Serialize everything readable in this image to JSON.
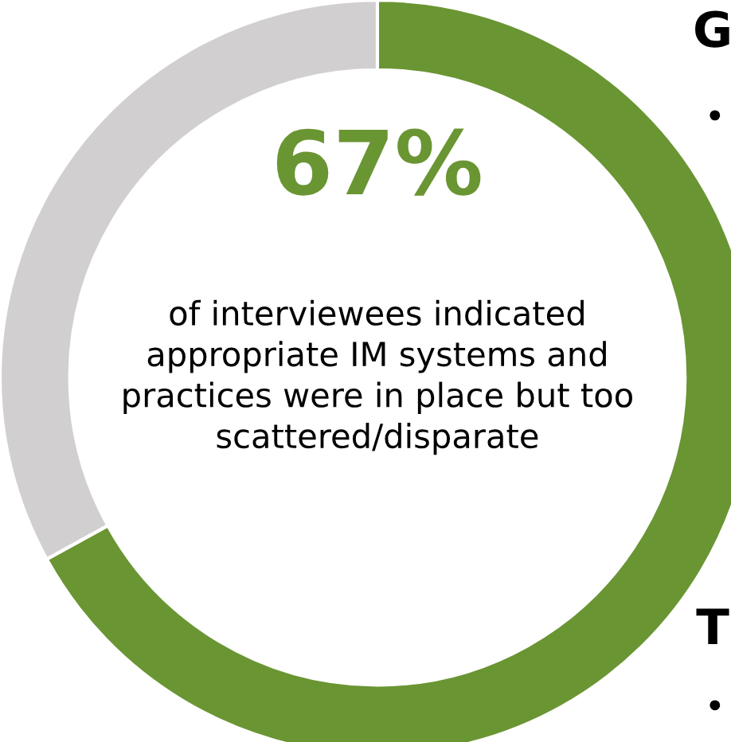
{
  "chart_data": {
    "type": "donut",
    "categories": [
      null,
      null
    ],
    "values": [
      67,
      33
    ],
    "colors": [
      "#6a9533",
      "#d1cfcf"
    ],
    "annotations": [
      "67%",
      "of interviewees indicated appropriate IM systems and practices were in place but too scattered/disparate",
      "G",
      "•",
      "T",
      "•"
    ]
  }
}
